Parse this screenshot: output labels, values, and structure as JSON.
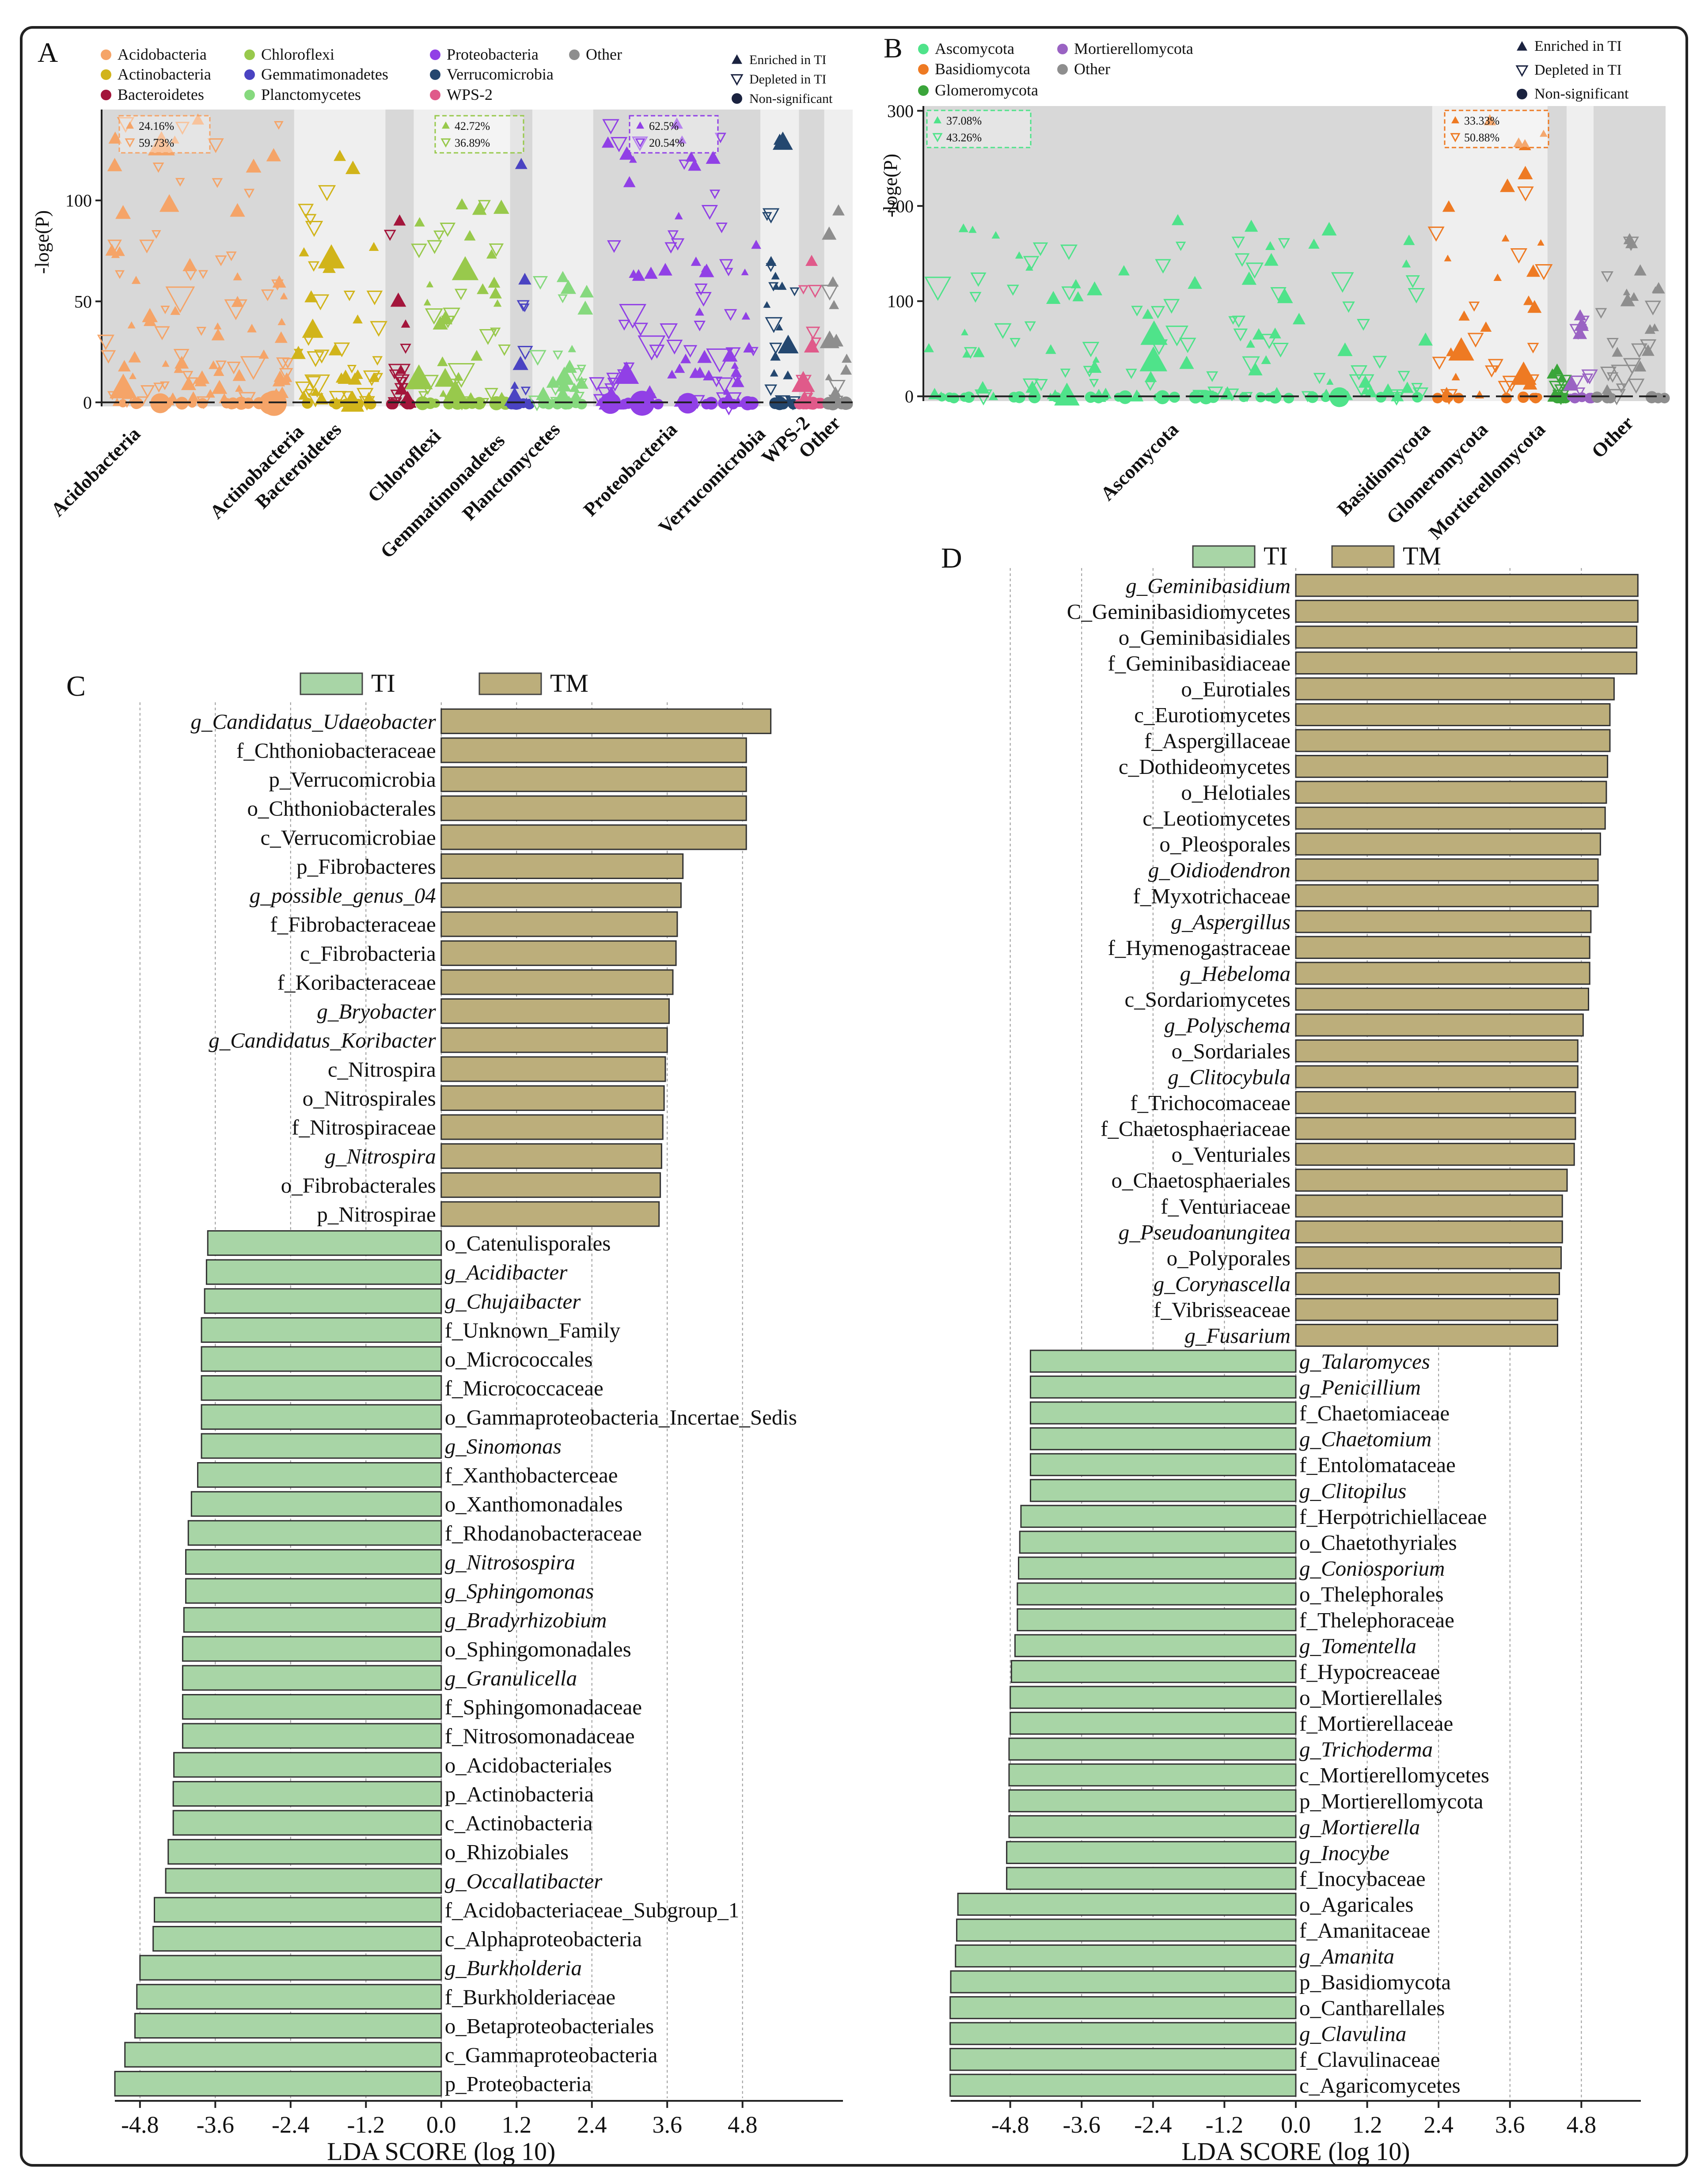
{
  "colors": {
    "TI": "#a8d5a6",
    "TM": "#bcae7b",
    "Acidobacteria": "#f5a468",
    "Actinobacteria": "#d1b41a",
    "Bacteroidetes": "#a3153b",
    "Chloroflexi": "#98c94c",
    "Gemmatimonadetes": "#4a43c2",
    "Planctomycetes": "#86d97e",
    "Proteobacteria": "#9140e6",
    "Verrucomicrobia": "#24476f",
    "WPS-2": "#e05a8a",
    "Other": "#8e8e8e",
    "Ascomycota": "#4fe38a",
    "Basidiomycota": "#ee7a23",
    "Glomeromycota": "#3aa53a",
    "Mortierellomycota": "#9a63c3"
  },
  "panel_a": {
    "label": "A",
    "ylabel": "-loge(P)",
    "legend_groups": [
      "Acidobacteria",
      "Actinobacteria",
      "Bacteroidetes",
      "Chloroflexi",
      "Gemmatimonadetes",
      "Planctomycetes",
      "Proteobacteria",
      "Verrucomicrobia",
      "WPS-2",
      "Other"
    ],
    "shape_legend": [
      "Enriched in TI",
      "Depleted in TI",
      "Non-significant"
    ],
    "boxes": [
      {
        "enriched": "24.16%",
        "depleted": "59.73%"
      },
      {
        "enriched": "42.72%",
        "depleted": "36.89%"
      },
      {
        "enriched": "62.5%",
        "depleted": "20.54%"
      }
    ]
  },
  "panel_b": {
    "label": "B",
    "ylabel": "-loge(P)",
    "legend_groups": [
      "Ascomycota",
      "Mortierellomycota",
      "Basidiomycota",
      "Other",
      "Glomeromycota"
    ],
    "shape_legend": [
      "Enriched in TI",
      "Depleted in TI",
      "Non-significant"
    ],
    "boxes": [
      {
        "enriched": "37.08%",
        "depleted": "43.26%"
      },
      {
        "enriched": "33.33%",
        "depleted": "50.88%"
      }
    ]
  },
  "chart_data": [
    {
      "panel": "A",
      "type": "scatter",
      "title": "",
      "xlabel": "",
      "ylabel": "-loge(P)",
      "ylim": [
        -2,
        145
      ],
      "yticks": [
        0,
        50,
        100
      ],
      "groups": [
        "Acidobacteria",
        "Actinobacteria",
        "Bacteroidetes",
        "Chloroflexi",
        "Gemmatimonadetes",
        "Planctomycetes",
        "Proteobacteria",
        "Verrucomicrobia",
        "WPS-2",
        "Other"
      ],
      "group_spans": [
        190,
        90,
        28,
        95,
        22,
        60,
        165,
        38,
        25,
        28
      ],
      "group_max": [
        140,
        122,
        90,
        98,
        118,
        62,
        138,
        130,
        70,
        95
      ],
      "group_points": [
        120,
        55,
        18,
        60,
        12,
        34,
        100,
        26,
        14,
        20
      ],
      "point_types": [
        "Enriched in TI",
        "Depleted in TI",
        "Non-significant"
      ]
    },
    {
      "panel": "B",
      "type": "scatter",
      "title": "",
      "xlabel": "",
      "ylabel": "-loge(P)",
      "ylim": [
        -5,
        305
      ],
      "yticks": [
        0,
        100,
        200,
        300
      ],
      "groups": [
        "Ascomycota",
        "Basidiomycota",
        "Glomeromycota",
        "Mortierellomycota",
        "Other"
      ],
      "group_spans": [
        530,
        120,
        20,
        28,
        75
      ],
      "group_max": [
        185,
        290,
        28,
        85,
        165
      ],
      "group_points": [
        160,
        45,
        10,
        12,
        30
      ],
      "point_types": [
        "Enriched in TI",
        "Depleted in TI",
        "Non-significant"
      ]
    },
    {
      "panel": "C",
      "type": "bar",
      "orientation": "horizontal",
      "xlabel": "LDA SCORE (log 10)",
      "xlim": [
        -5.2,
        6.4
      ],
      "xticks": [
        -4.8,
        -3.6,
        -2.4,
        -1.2,
        0.0,
        1.2,
        2.4,
        3.6,
        4.8
      ],
      "series_names": [
        "TI",
        "TM"
      ],
      "categories": [
        "g_Candidatus_Udaeobacter",
        "f_Chthoniobacteraceae",
        "p_Verrucomicrobia",
        "o_Chthoniobacterales",
        "c_Verrucomicrobiae",
        "p_Fibrobacteres",
        "g_possible_genus_04",
        "f_Fibrobacteraceae",
        "c_Fibrobacteria",
        "f_Koribacteraceae",
        "g_Bryobacter",
        "g_Candidatus_Koribacter",
        "c_Nitrospira",
        "o_Nitrospirales",
        "f_Nitrospiraceae",
        "g_Nitrospira",
        "o_Fibrobacterales",
        "p_Nitrospirae",
        "o_Catenulisporales",
        "g_Acidibacter",
        "g_Chujaibacter",
        "f_Unknown_Family",
        "o_Micrococcales",
        "f_Micrococcaceae",
        "o_Gammaproteobacteria_Incertae_Sedis",
        "g_Sinomonas",
        "f_Xanthobacterceae",
        "o_Xanthomonadales",
        "f_Rhodanobacteraceae",
        "g_Nitrosospira",
        "g_Sphingomonas",
        "g_Bradyrhizobium",
        "o_Sphingomonadales",
        "g_Granulicella",
        "f_Sphingomonadaceae",
        "f_Nitrosomonadaceae",
        "o_Acidobacteriales",
        "p_Actinobacteria",
        "c_Actinobacteria",
        "o_Rhizobiales",
        "g_Occallatibacter",
        "f_Acidobacteriaceae_Subgroup_1",
        "c_Alphaproteobacteria",
        "g_Burkholderia",
        "f_Burkholderiaceae",
        "o_Betaproteobacteriales",
        "c_Gammaproteobacteria",
        "p_Proteobacteria"
      ],
      "italic": [
        true,
        false,
        false,
        false,
        false,
        false,
        true,
        false,
        false,
        false,
        true,
        true,
        false,
        false,
        false,
        true,
        false,
        false,
        false,
        true,
        true,
        false,
        false,
        false,
        false,
        true,
        false,
        false,
        false,
        true,
        true,
        true,
        false,
        true,
        false,
        false,
        false,
        false,
        false,
        false,
        true,
        false,
        false,
        true,
        false,
        false,
        false,
        false
      ],
      "group": [
        "TM",
        "TM",
        "TM",
        "TM",
        "TM",
        "TM",
        "TM",
        "TM",
        "TM",
        "TM",
        "TM",
        "TM",
        "TM",
        "TM",
        "TM",
        "TM",
        "TM",
        "TM",
        "TI",
        "TI",
        "TI",
        "TI",
        "TI",
        "TI",
        "TI",
        "TI",
        "TI",
        "TI",
        "TI",
        "TI",
        "TI",
        "TI",
        "TI",
        "TI",
        "TI",
        "TI",
        "TI",
        "TI",
        "TI",
        "TI",
        "TI",
        "TI",
        "TI",
        "TI",
        "TI",
        "TI",
        "TI",
        "TI"
      ],
      "values": [
        5.25,
        4.86,
        4.86,
        4.86,
        4.86,
        3.85,
        3.82,
        3.76,
        3.74,
        3.69,
        3.63,
        3.6,
        3.57,
        3.55,
        3.53,
        3.51,
        3.49,
        3.47,
        -3.72,
        -3.74,
        -3.77,
        -3.82,
        -3.82,
        -3.82,
        -3.82,
        -3.82,
        -3.88,
        -3.98,
        -4.03,
        -4.07,
        -4.07,
        -4.1,
        -4.12,
        -4.12,
        -4.12,
        -4.12,
        -4.26,
        -4.27,
        -4.27,
        -4.35,
        -4.39,
        -4.57,
        -4.59,
        -4.8,
        -4.85,
        -4.88,
        -5.04,
        -5.2
      ]
    },
    {
      "panel": "D",
      "type": "bar",
      "orientation": "horizontal",
      "xlabel": "LDA SCORE (log 10)",
      "xlim": [
        -5.8,
        5.8
      ],
      "xticks": [
        -4.8,
        -3.6,
        -2.4,
        -1.2,
        0.0,
        1.2,
        2.4,
        3.6,
        4.8
      ],
      "series_names": [
        "TI",
        "TM"
      ],
      "categories": [
        "g_Geminibasidium",
        "C_Geminibasidiomycetes",
        "o_Geminibasidiales",
        "f_Geminibasidiaceae",
        "o_Eurotiales",
        "c_Eurotiomycetes",
        "f_Aspergillaceae",
        "c_Dothideomycetes",
        "o_Helotiales",
        "c_Leotiomycetes",
        "o_Pleosporales",
        "g_Oidiodendron",
        "f_Myxotrichaceae",
        "g_Aspergillus",
        "f_Hymenogastraceae",
        "g_Hebeloma",
        "c_Sordariomycetes",
        "g_Polyschema",
        "o_Sordariales",
        "g_Clitocybula",
        "f_Trichocomaceae",
        "f_Chaetosphaeriaceae",
        "o_Venturiales",
        "o_Chaetosphaeriales",
        "f_Venturiaceae",
        "g_Pseudoanungitea",
        "o_Polyporales",
        "g_Corynascella",
        "f_Vibrisseaceae",
        "g_Fusarium",
        "g_Talaromyces",
        "g_Penicillium",
        "f_Chaetomiaceae",
        "g_Chaetomium",
        "f_Entolomataceae",
        "g_Clitopilus",
        "f_Herpotrichiellaceae",
        "o_Chaetothyriales",
        "g_Coniosporium",
        "o_Thelephorales",
        "f_Thelephoraceae",
        "g_Tomentella",
        "f_Hypocreaceae",
        "o_Mortierellales",
        "f_Mortierellaceae",
        "g_Trichoderma",
        "c_Mortierellomycetes",
        "p_Mortierellomycota",
        "g_Mortierella",
        "g_Inocybe",
        "f_Inocybaceae",
        "o_Agaricales",
        "f_Amanitaceae",
        "g_Amanita",
        "p_Basidiomycota",
        "o_Cantharellales",
        "g_Clavulina",
        "f_Clavulinaceae",
        "c_Agaricomycetes"
      ],
      "italic": [
        true,
        false,
        false,
        false,
        false,
        false,
        false,
        false,
        false,
        false,
        false,
        true,
        false,
        true,
        false,
        true,
        false,
        true,
        false,
        true,
        false,
        false,
        false,
        false,
        false,
        true,
        false,
        true,
        false,
        true,
        true,
        true,
        false,
        true,
        false,
        true,
        false,
        false,
        true,
        false,
        false,
        true,
        false,
        false,
        false,
        true,
        false,
        false,
        true,
        true,
        false,
        false,
        false,
        true,
        false,
        false,
        true,
        false,
        false
      ],
      "group": [
        "TM",
        "TM",
        "TM",
        "TM",
        "TM",
        "TM",
        "TM",
        "TM",
        "TM",
        "TM",
        "TM",
        "TM",
        "TM",
        "TM",
        "TM",
        "TM",
        "TM",
        "TM",
        "TM",
        "TM",
        "TM",
        "TM",
        "TM",
        "TM",
        "TM",
        "TM",
        "TM",
        "TM",
        "TM",
        "TM",
        "TI",
        "TI",
        "TI",
        "TI",
        "TI",
        "TI",
        "TI",
        "TI",
        "TI",
        "TI",
        "TI",
        "TI",
        "TI",
        "TI",
        "TI",
        "TI",
        "TI",
        "TI",
        "TI",
        "TI",
        "TI",
        "TI",
        "TI",
        "TI",
        "TI",
        "TI",
        "TI",
        "TI",
        "TI"
      ],
      "values": [
        5.75,
        5.75,
        5.73,
        5.73,
        5.35,
        5.28,
        5.28,
        5.24,
        5.22,
        5.2,
        5.12,
        5.08,
        5.08,
        4.96,
        4.94,
        4.94,
        4.92,
        4.83,
        4.74,
        4.74,
        4.7,
        4.7,
        4.68,
        4.56,
        4.48,
        4.48,
        4.46,
        4.43,
        4.4,
        4.4,
        -4.46,
        -4.46,
        -4.46,
        -4.46,
        -4.46,
        -4.46,
        -4.62,
        -4.64,
        -4.66,
        -4.68,
        -4.68,
        -4.72,
        -4.78,
        -4.8,
        -4.8,
        -4.82,
        -4.82,
        -4.82,
        -4.82,
        -4.86,
        -4.86,
        -5.68,
        -5.7,
        -5.72,
        -5.8,
        -5.81,
        -5.81,
        -5.81,
        -5.81
      ]
    }
  ]
}
